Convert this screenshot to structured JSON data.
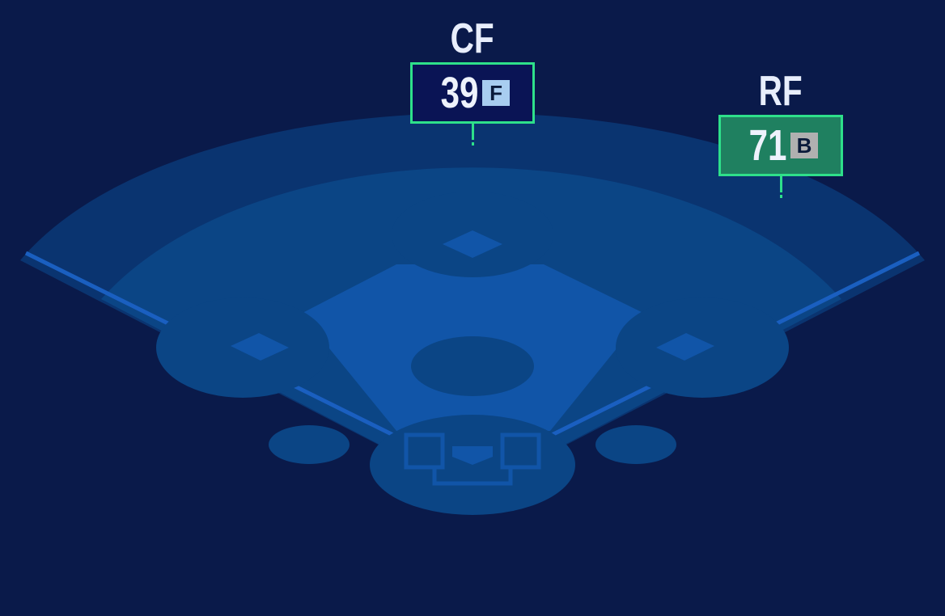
{
  "colors": {
    "background": "#0a1a4a",
    "warning_track": "#0a3470",
    "outfield": "#0b4585",
    "infield": "#1155a8",
    "highlight_border": "#2ee08a"
  },
  "positions": [
    {
      "label": "CF",
      "rating": "39",
      "grade": "F",
      "card_color": "#0a1455",
      "grade_color": "#a8cdf0"
    },
    {
      "label": "RF",
      "rating": "71",
      "grade": "B",
      "card_color": "#1f8060",
      "grade_color": "#b0b0b0"
    }
  ]
}
